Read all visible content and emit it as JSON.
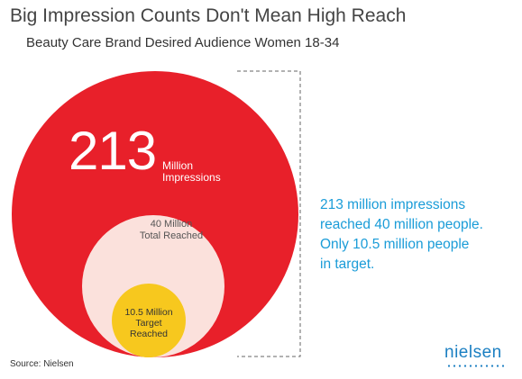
{
  "title": "Big Impression Counts Don't Mean High Reach",
  "subtitle": "Beauty Care Brand Desired Audience Women 18-34",
  "impressions": {
    "value": "213",
    "label_line1": "Million",
    "label_line2": "Impressions"
  },
  "total_reached": {
    "line1": "40 Million",
    "line2": "Total Reached"
  },
  "target_reached": {
    "line1": "10.5 Million",
    "line2": "Target",
    "line3": "Reached"
  },
  "callout": {
    "line1": "213 million impressions",
    "line2": "reached 40 million people.",
    "line3": "Only 10.5 million people",
    "line4": "in target."
  },
  "source": "Source: Nielsen",
  "logo": "nielsen",
  "colors": {
    "impressions_circle": "#e8202a",
    "reach_circle": "#fbe1dc",
    "target_circle": "#f7c81e",
    "callout_text": "#1a9cd8",
    "logo": "#1b7fc2"
  }
}
